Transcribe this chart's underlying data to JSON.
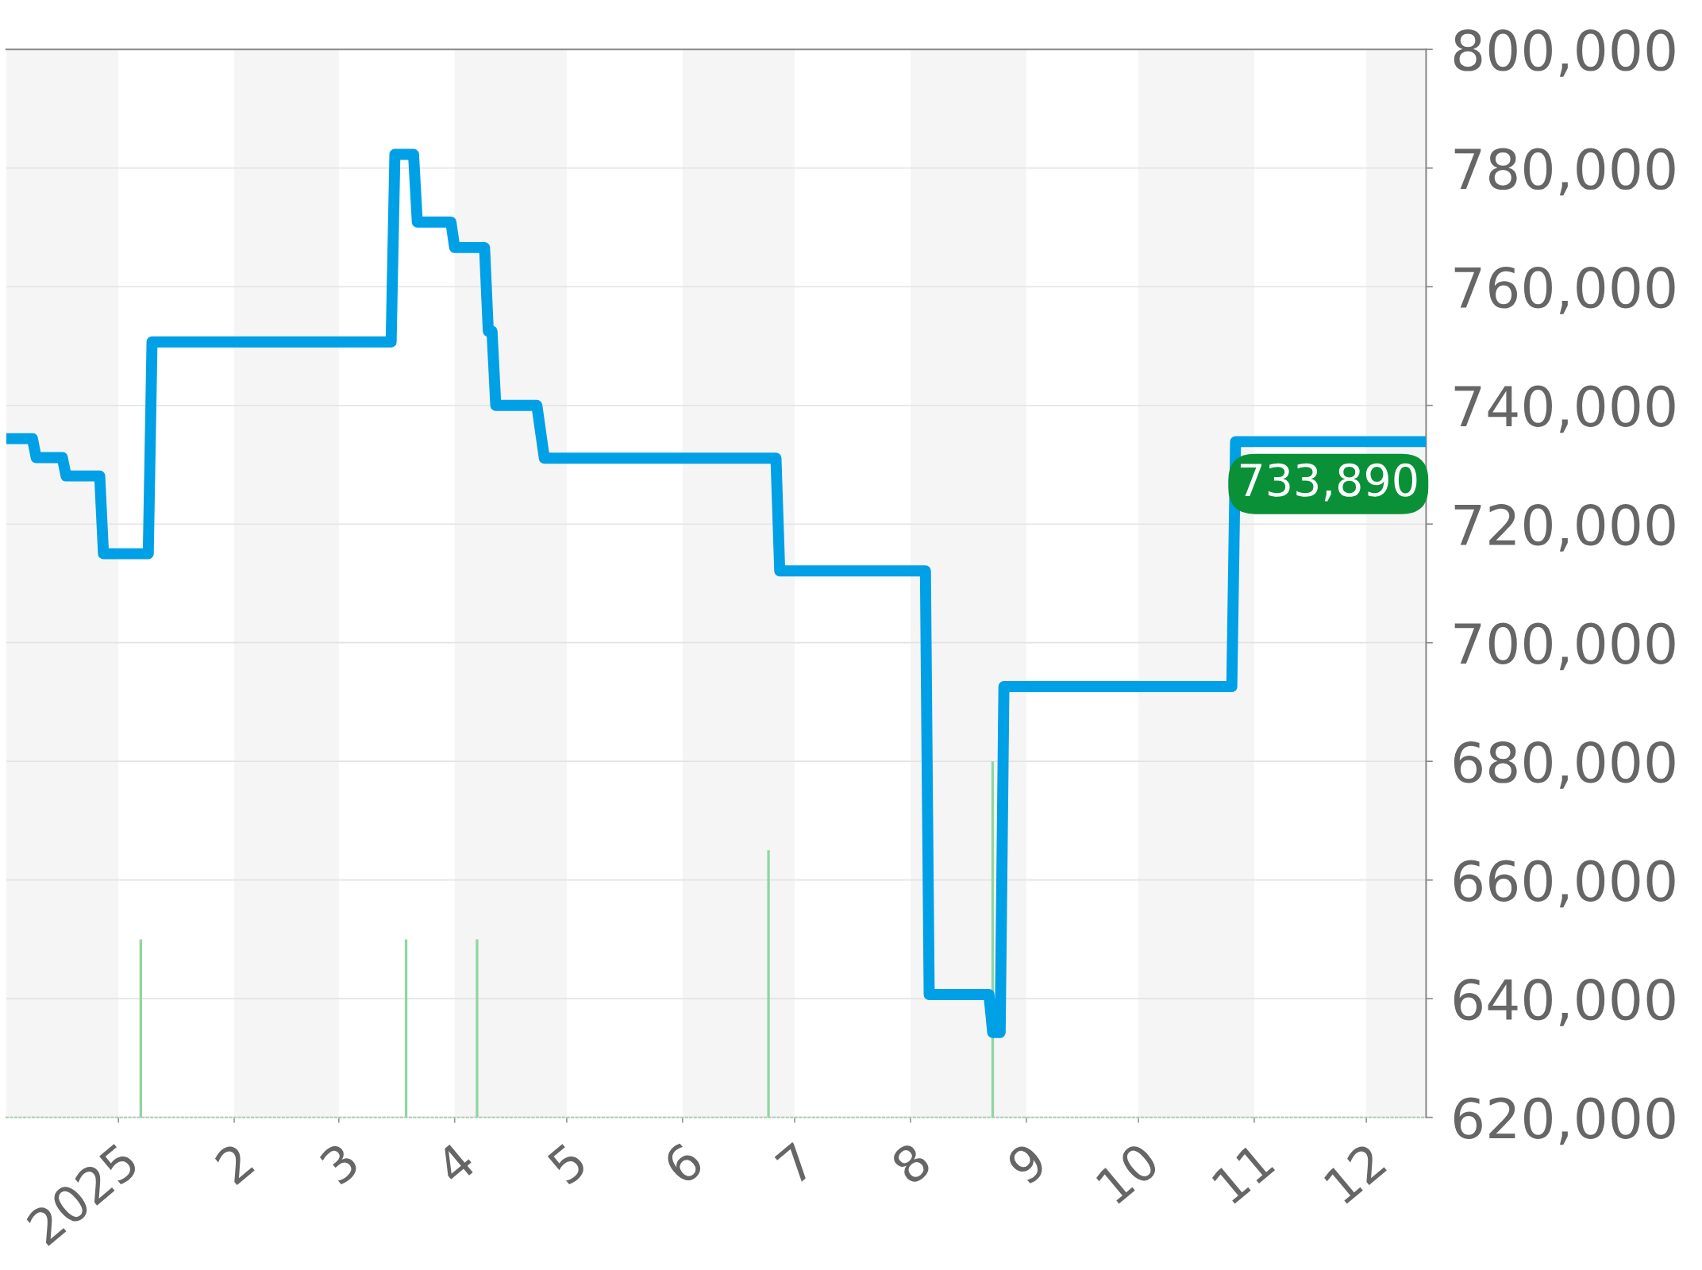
{
  "chart_data": {
    "type": "line",
    "series": [
      {
        "color": "#00a0e6",
        "x": [
          "2024-12-02",
          "2024-12-09",
          "2024-12-10",
          "2024-12-17",
          "2024-12-18",
          "2024-12-27",
          "2024-12-28",
          "2025-01-09",
          "2025-01-10",
          "2025-03-15",
          "2025-03-16",
          "2025-03-21",
          "2025-03-22",
          "2025-03-31",
          "2025-04-01",
          "2025-04-09",
          "2025-04-10",
          "2025-04-11",
          "2025-04-12",
          "2025-04-23",
          "2025-04-25",
          "2025-06-26",
          "2025-06-27",
          "2025-08-05",
          "2025-08-06",
          "2025-08-22",
          "2025-08-23",
          "2025-08-25",
          "2025-08-26",
          "2025-10-26",
          "2025-10-27",
          "2025-12-17"
        ],
        "values": [
          734400,
          734400,
          731200,
          731200,
          728100,
          728100,
          715000,
          715000,
          750700,
          750700,
          782300,
          782300,
          770900,
          770900,
          766600,
          766600,
          752500,
          752500,
          740000,
          740000,
          731100,
          731100,
          712100,
          712100,
          640700,
          640700,
          634300,
          634300,
          692600,
          692600,
          733890,
          733890
        ]
      },
      {
        "type": "bar",
        "color": "#8fd6a0",
        "x": [
          "2025-01-07",
          "2025-03-19",
          "2025-04-07",
          "2025-06-24",
          "2025-08-23"
        ],
        "base": [
          620000,
          620000,
          620000,
          620000,
          620000
        ],
        "values": [
          30000,
          30000,
          30000,
          45000,
          60000
        ]
      }
    ],
    "xlim": [
      "2024-12-02",
      "2025-12-17"
    ],
    "xticks": [
      {
        "value": "2025-01-01",
        "label": "2025"
      },
      {
        "value": "2025-02-01",
        "label": "2"
      },
      {
        "value": "2025-03-01",
        "label": "3"
      },
      {
        "value": "2025-04-01",
        "label": "4"
      },
      {
        "value": "2025-05-01",
        "label": "5"
      },
      {
        "value": "2025-06-01",
        "label": "6"
      },
      {
        "value": "2025-07-01",
        "label": "7"
      },
      {
        "value": "2025-08-01",
        "label": "8"
      },
      {
        "value": "2025-09-01",
        "label": "9"
      },
      {
        "value": "2025-10-01",
        "label": "10"
      },
      {
        "value": "2025-11-01",
        "label": "11"
      },
      {
        "value": "2025-12-01",
        "label": "12"
      }
    ],
    "ylim": [
      620000,
      800000
    ],
    "yticks": [
      {
        "value": 620000,
        "label": "620,000"
      },
      {
        "value": 640000,
        "label": "640,000"
      },
      {
        "value": 660000,
        "label": "660,000"
      },
      {
        "value": 680000,
        "label": "680,000"
      },
      {
        "value": 700000,
        "label": "700,000"
      },
      {
        "value": 720000,
        "label": "720,000"
      },
      {
        "value": 740000,
        "label": "740,000"
      },
      {
        "value": 760000,
        "label": "760,000"
      },
      {
        "value": 780000,
        "label": "780,000"
      },
      {
        "value": 800000,
        "label": "800,000"
      }
    ],
    "bands": [
      {
        "axis": "x",
        "from": "2024-12-02",
        "to": "2025-01-01",
        "color": "#f5f5f5"
      },
      {
        "axis": "x",
        "from": "2025-02-01",
        "to": "2025-03-01",
        "color": "#f5f5f5"
      },
      {
        "axis": "x",
        "from": "2025-04-01",
        "to": "2025-05-01",
        "color": "#f5f5f5"
      },
      {
        "axis": "x",
        "from": "2025-06-01",
        "to": "2025-07-01",
        "color": "#f5f5f5"
      },
      {
        "axis": "x",
        "from": "2025-08-01",
        "to": "2025-09-01",
        "color": "#f5f5f5"
      },
      {
        "axis": "x",
        "from": "2025-10-01",
        "to": "2025-11-01",
        "color": "#f5f5f5"
      },
      {
        "axis": "x",
        "from": "2025-12-01",
        "to": "2025-12-17",
        "color": "#f5f5f5"
      }
    ],
    "annotations": [
      {
        "text": "733,890",
        "x": "2025-12-17",
        "y": 733890
      }
    ],
    "grid": "y",
    "marker": "none",
    "line_style": "solid"
  }
}
